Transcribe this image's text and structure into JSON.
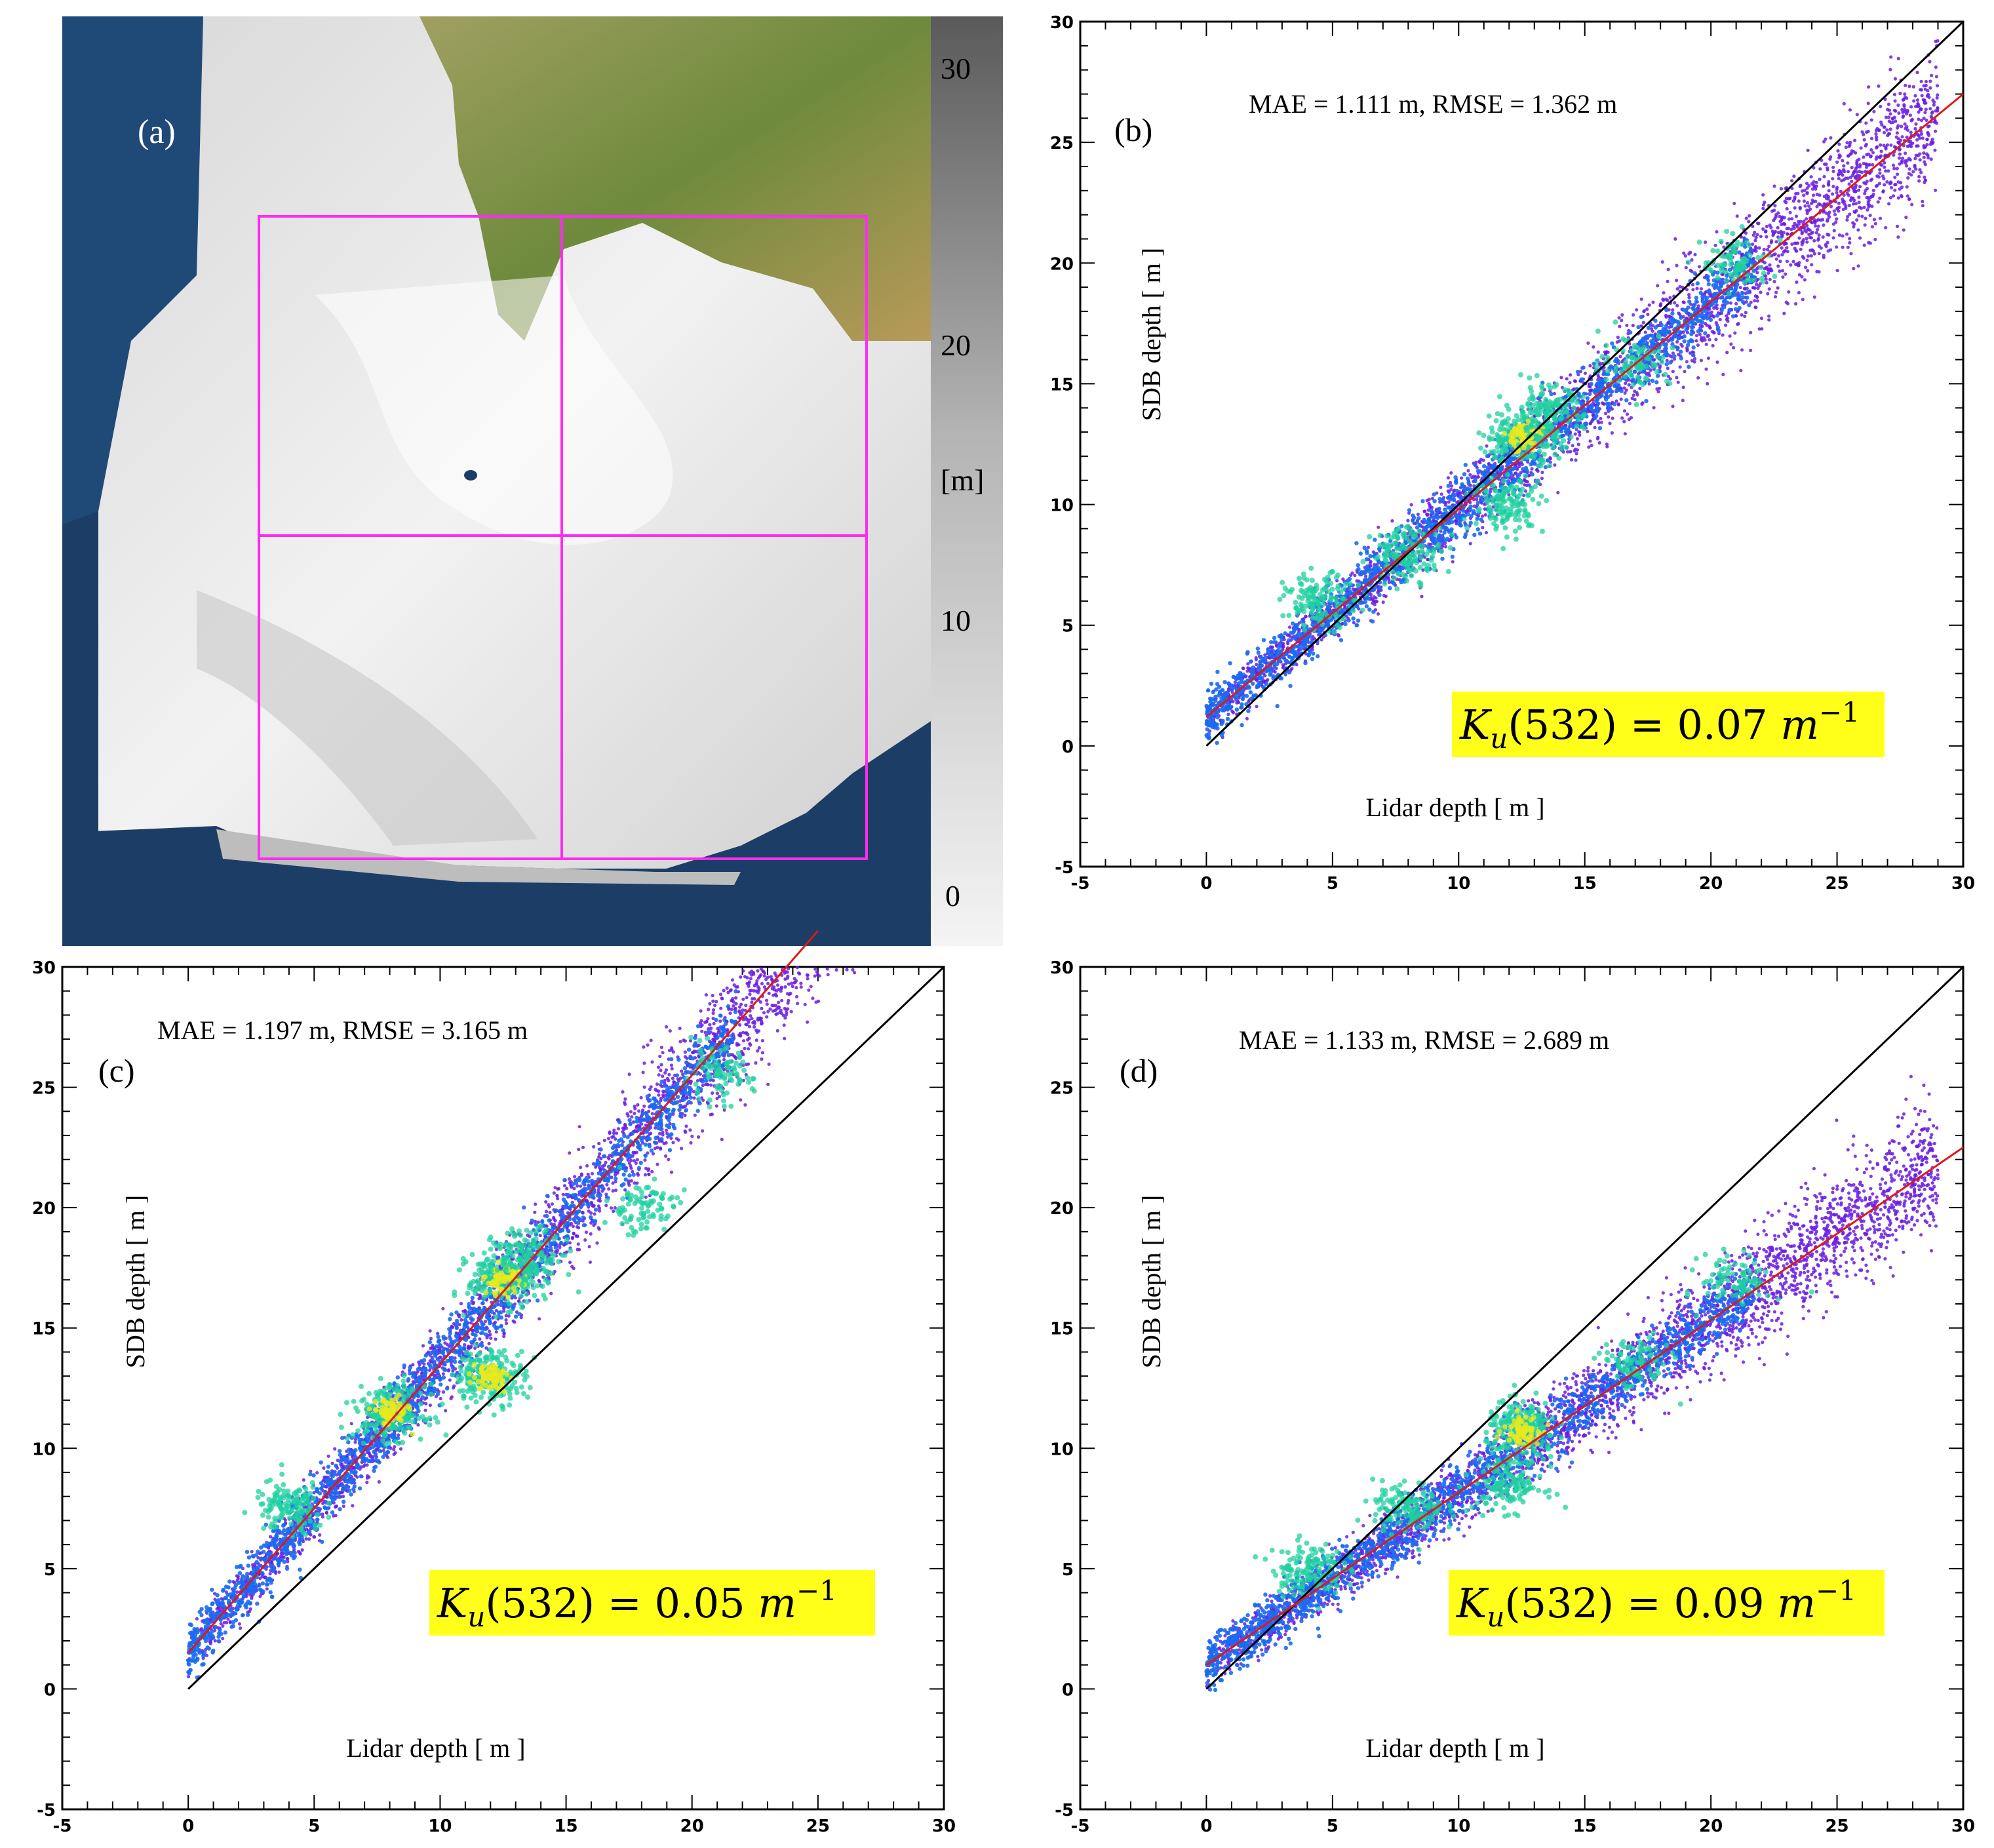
{
  "colors": {
    "background": "#ffffff",
    "identity_line": "#000000",
    "fit_line": "#e01818",
    "scatter_low": "#6a1de0",
    "scatter_mid": "#1a6cf0",
    "scatter_high": "#20d0a0",
    "scatter_peak": "#e8e820",
    "ku_highlight": "#ffff1a",
    "rectangle": "#ff2cf0",
    "sea_deep": "#1c3e66",
    "land": "#8a9a4a"
  },
  "map_panel": {
    "label": "(a)",
    "colorbar": {
      "ticks": [
        "30",
        "20",
        "10",
        "0"
      ],
      "unit": "[m]"
    }
  },
  "chart_data": [
    {
      "panel": "(b)",
      "type": "scatter",
      "xlabel": "Lidar depth [ m ]",
      "ylabel": "SDB depth [ m ]",
      "xlim": [
        -5,
        30
      ],
      "ylim": [
        -5,
        30
      ],
      "xticks": [
        "-5",
        "0",
        "5",
        "10",
        "15",
        "20",
        "25",
        "30"
      ],
      "yticks": [
        "-5",
        "0",
        "5",
        "10",
        "15",
        "20",
        "25",
        "30"
      ],
      "stats": "MAE = 1.111 m,   RMSE = 1.362 m",
      "ku": {
        "prefix": "K",
        "sub": "u",
        "middle": "(532) = 0.07 ",
        "unit": "m",
        "sup": "−1"
      },
      "identity_line": [
        [
          0,
          0
        ],
        [
          30,
          30
        ]
      ],
      "fit_line": [
        [
          0,
          1.2
        ],
        [
          30,
          27.0
        ]
      ],
      "spread": 1.8,
      "x_max": 29,
      "clusters": [
        {
          "x": 4.5,
          "y": 6.0,
          "level": "high"
        },
        {
          "x": 8.0,
          "y": 8.0,
          "level": "high"
        },
        {
          "x": 12.5,
          "y": 12.8,
          "level": "peak"
        },
        {
          "x": 13.5,
          "y": 13.8,
          "level": "high"
        },
        {
          "x": 12.0,
          "y": 10.0,
          "level": "high"
        },
        {
          "x": 17.0,
          "y": 16.0,
          "level": "mid"
        },
        {
          "x": 21.0,
          "y": 20.0,
          "level": "mid"
        }
      ]
    },
    {
      "panel": "(c)",
      "type": "scatter",
      "xlabel": "Lidar depth [ m ]",
      "ylabel": "SDB depth [ m ]",
      "xlim": [
        -5,
        30
      ],
      "ylim": [
        -5,
        30
      ],
      "xticks": [
        "-5",
        "0",
        "5",
        "10",
        "15",
        "20",
        "25",
        "30"
      ],
      "yticks": [
        "-5",
        "0",
        "5",
        "10",
        "15",
        "20",
        "25",
        "30"
      ],
      "stats": "MAE = 1.197 m,   RMSE = 3.165 m",
      "ku": {
        "prefix": "K",
        "sub": "u",
        "middle": "(532) = 0.05 ",
        "unit": "m",
        "sup": "−1"
      },
      "identity_line": [
        [
          0,
          0
        ],
        [
          30,
          30
        ]
      ],
      "fit_line": [
        [
          0,
          1.5
        ],
        [
          25,
          31.5
        ]
      ],
      "spread": 1.9,
      "x_max": 29,
      "clusters": [
        {
          "x": 4.0,
          "y": 7.5,
          "level": "high"
        },
        {
          "x": 8.0,
          "y": 11.5,
          "level": "peak"
        },
        {
          "x": 12.5,
          "y": 17.0,
          "level": "peak"
        },
        {
          "x": 13.5,
          "y": 18.0,
          "level": "high"
        },
        {
          "x": 12.0,
          "y": 13.0,
          "level": "peak"
        },
        {
          "x": 18.0,
          "y": 20.0,
          "level": "mid"
        },
        {
          "x": 21.0,
          "y": 25.5,
          "level": "mid"
        }
      ]
    },
    {
      "panel": "(d)",
      "type": "scatter",
      "xlabel": "Lidar depth [ m ]",
      "ylabel": "SDB depth [ m ]",
      "xlim": [
        -5,
        30
      ],
      "ylim": [
        -5,
        30
      ],
      "xticks": [
        "-5",
        "0",
        "5",
        "10",
        "15",
        "20",
        "25",
        "30"
      ],
      "yticks": [
        "-5",
        "0",
        "5",
        "10",
        "15",
        "20",
        "25",
        "30"
      ],
      "stats": "MAE = 1.133 m,   RMSE = 2.689 m",
      "ku": {
        "prefix": "K",
        "sub": "u",
        "middle": "(532) = 0.09 ",
        "unit": "m",
        "sup": "−1"
      },
      "identity_line": [
        [
          0,
          0
        ],
        [
          30,
          30
        ]
      ],
      "fit_line": [
        [
          0,
          1.0
        ],
        [
          30,
          22.5
        ]
      ],
      "spread": 1.7,
      "x_max": 29,
      "clusters": [
        {
          "x": 4.0,
          "y": 5.0,
          "level": "high"
        },
        {
          "x": 8.0,
          "y": 7.5,
          "level": "high"
        },
        {
          "x": 12.5,
          "y": 10.8,
          "level": "peak"
        },
        {
          "x": 12.0,
          "y": 8.5,
          "level": "high"
        },
        {
          "x": 17.0,
          "y": 13.5,
          "level": "mid"
        },
        {
          "x": 21.0,
          "y": 17.0,
          "level": "mid"
        }
      ]
    }
  ]
}
